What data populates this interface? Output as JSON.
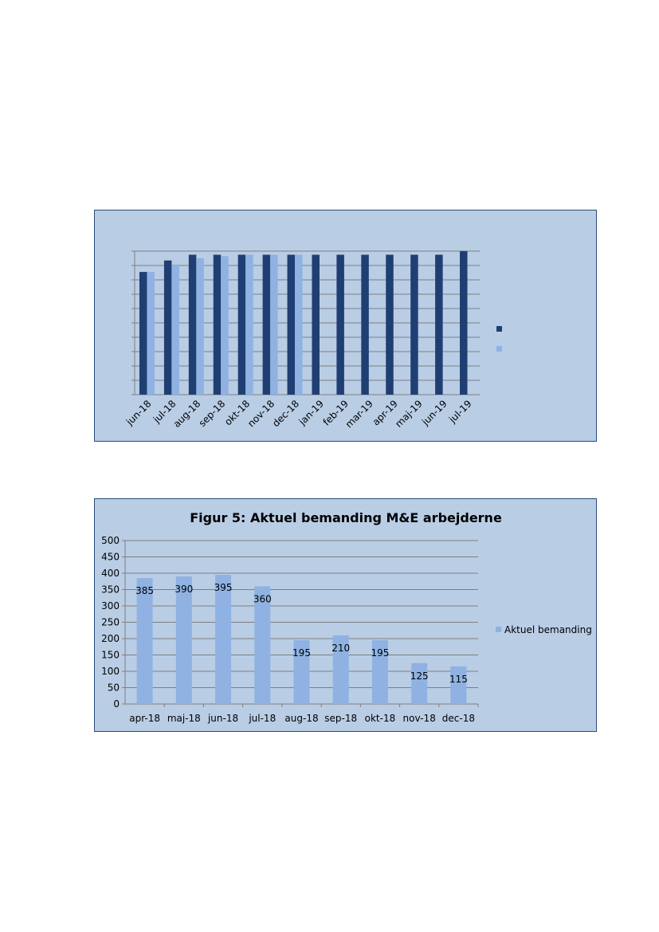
{
  "colors": {
    "panel_background": "#b9cde5",
    "panel_border": "#2b4c7e",
    "dark_series": "#1f3f73",
    "light_series": "#8fb2e3",
    "gridline": "#7f7f7f"
  },
  "chart_data": [
    {
      "type": "bar",
      "title": "",
      "xlabel": "",
      "ylabel": "",
      "categories": [
        "jun-18",
        "jul-18",
        "aug-18",
        "sep-18",
        "okt-18",
        "nov-18",
        "dec-18",
        "jan-19",
        "feb-19",
        "mar-19",
        "apr-19",
        "maj-19",
        "jun-19",
        "jul-19"
      ],
      "ylim": [
        0,
        100
      ],
      "grid": true,
      "y_tick_labels_visible": false,
      "legend_position": "right",
      "series": [
        {
          "color": "#1f3f73",
          "values": [
            85.5,
            93.5,
            97.5,
            97.5,
            97.5,
            97.5,
            97.5,
            97.5,
            97.5,
            97.5,
            97.5,
            97.5,
            97.5,
            100
          ]
        },
        {
          "color": "#8fb2e3",
          "values": [
            85.5,
            90.0,
            95.0,
            96.5,
            97.5,
            97.5,
            97.5,
            null,
            null,
            null,
            null,
            null,
            null,
            null
          ]
        }
      ]
    },
    {
      "type": "bar",
      "title": "Figur 5: Aktuel bemanding M&E arbejderne",
      "xlabel": "",
      "ylabel": "",
      "categories": [
        "apr-18",
        "maj-18",
        "jun-18",
        "jul-18",
        "aug-18",
        "sep-18",
        "okt-18",
        "nov-18",
        "dec-18"
      ],
      "ylim": [
        0,
        500
      ],
      "yticks": [
        0,
        50,
        100,
        150,
        200,
        250,
        300,
        350,
        400,
        450,
        500
      ],
      "grid": true,
      "legend_position": "right",
      "series": [
        {
          "name": "Aktuel bemanding",
          "color": "#8fb2e3",
          "values": [
            385,
            390,
            395,
            360,
            195,
            210,
            195,
            125,
            115
          ]
        }
      ]
    }
  ]
}
